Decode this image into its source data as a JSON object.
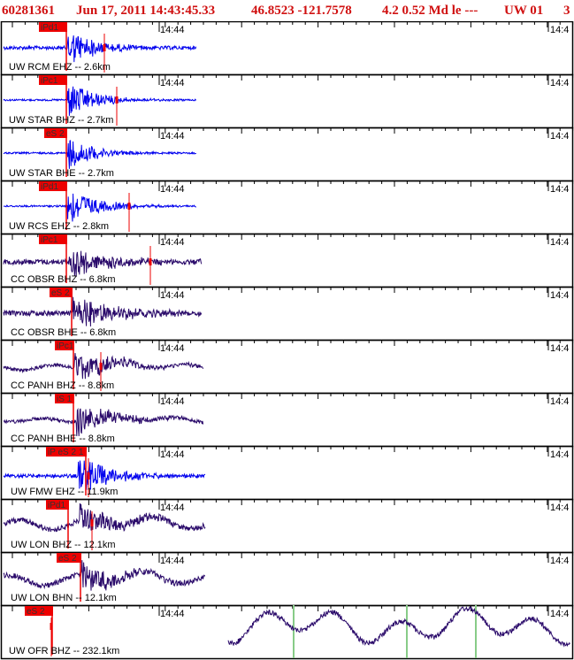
{
  "header": {
    "event_id": "60281361",
    "datetime": "Jun 17, 2011 14:43:45.33",
    "location": "46.8523 -121.7578",
    "magnitude_info": "4.2 0.52 Md le ---",
    "network": "UW 01",
    "extra": "3"
  },
  "time_marker": "14:44",
  "time_marker_right": "14:4",
  "colors": {
    "blue_trace": "#0000ee",
    "purple_trace": "#2a0a6a",
    "pick_red": "#ee0000",
    "header_red": "#d01010",
    "green_line": "#88cc88"
  },
  "traces": [
    {
      "label": "UW RCM EHZ -- 2.6km",
      "pick": "iPd1",
      "color": "blue"
    },
    {
      "label": "UW STAR BHZ -- 2.7km",
      "pick": "iPc1",
      "color": "blue"
    },
    {
      "label": "UW STAR BHE -- 2.7km",
      "pick": "eS 2",
      "color": "blue"
    },
    {
      "label": "UW RCS EHZ -- 2.8km",
      "pick": "iPd1",
      "color": "blue"
    },
    {
      "label": "CC OBSR BHZ -- 6.8km",
      "pick": "iPc1",
      "color": "purple"
    },
    {
      "label": "CC OBSR BHE -- 6.8km",
      "pick": "eS 2",
      "color": "purple"
    },
    {
      "label": "CC PANH BHZ -- 8.8km",
      "pick": "iPc1",
      "color": "purple"
    },
    {
      "label": "CC PANH BHE -- 8.8km",
      "pick": "iS 1",
      "color": "purple"
    },
    {
      "label": "UW FMW EHZ -- 11.9km",
      "pick": "iP eS 2 1",
      "color": "blue"
    },
    {
      "label": "UW LON BHZ -- 12.1km",
      "pick": "iPd1",
      "color": "purple"
    },
    {
      "label": "UW LON BHN -- 12.1km",
      "pick": "eS 2",
      "color": "purple"
    },
    {
      "label": "UW OFR BHZ -- 232.1km",
      "pick": "eS 2",
      "color": "purple"
    }
  ]
}
